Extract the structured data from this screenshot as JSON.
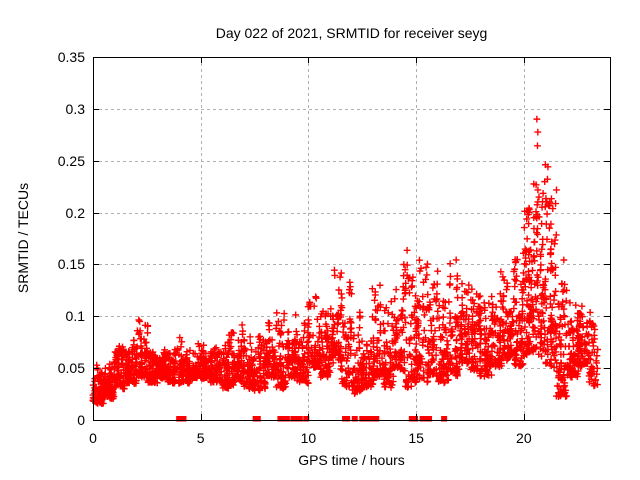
{
  "chart_data": {
    "type": "scatter",
    "title": "Day 022 of 2021, SRMTID for receiver seyg",
    "xlabel": "GPS time / hours",
    "ylabel": "SRMTID / TECUs",
    "xlim": [
      0,
      24
    ],
    "ylim": [
      0,
      0.35
    ],
    "xticks": [
      0,
      5,
      10,
      15,
      20
    ],
    "xtick_labels": [
      "0",
      "5",
      "10",
      "15",
      "20"
    ],
    "yticks": [
      0,
      0.05,
      0.1,
      0.15,
      0.2,
      0.25,
      0.3,
      0.35
    ],
    "ytick_labels": [
      "0",
      "0.05",
      "0.1",
      "0.15",
      "0.2",
      "0.25",
      "0.3",
      "0.35"
    ],
    "grid": true,
    "legend": "none",
    "marker": "plus",
    "marker_color": "#ff0000",
    "grid_color": "#b0b0b0",
    "axis_color": "#000000",
    "bands": [
      [
        0.0,
        0.5,
        0.015,
        0.055,
        85
      ],
      [
        0.5,
        1.0,
        0.02,
        0.075,
        90
      ],
      [
        1.0,
        1.5,
        0.03,
        0.1,
        85
      ],
      [
        1.5,
        2.0,
        0.035,
        0.08,
        80
      ],
      [
        2.0,
        2.5,
        0.04,
        0.125,
        85
      ],
      [
        2.5,
        3.0,
        0.035,
        0.095,
        80
      ],
      [
        3.0,
        3.5,
        0.04,
        0.08,
        75
      ],
      [
        3.5,
        4.0,
        0.035,
        0.075,
        75
      ],
      [
        4.0,
        4.5,
        0.035,
        0.08,
        70
      ],
      [
        4.5,
        5.0,
        0.04,
        0.08,
        70
      ],
      [
        5.0,
        5.5,
        0.04,
        0.085,
        70
      ],
      [
        5.5,
        6.0,
        0.035,
        0.08,
        70
      ],
      [
        6.0,
        6.5,
        0.03,
        0.09,
        70
      ],
      [
        6.5,
        7.0,
        0.035,
        0.1,
        70
      ],
      [
        7.0,
        7.5,
        0.03,
        0.085,
        65
      ],
      [
        7.5,
        8.0,
        0.025,
        0.105,
        65
      ],
      [
        8.0,
        8.5,
        0.04,
        0.1,
        70
      ],
      [
        8.5,
        9.0,
        0.03,
        0.105,
        65
      ],
      [
        9.0,
        9.5,
        0.04,
        0.11,
        65
      ],
      [
        9.5,
        10.0,
        0.035,
        0.125,
        65
      ],
      [
        10.0,
        10.5,
        0.05,
        0.14,
        70
      ],
      [
        10.5,
        11.0,
        0.04,
        0.125,
        70
      ],
      [
        11.0,
        11.5,
        0.055,
        0.16,
        70
      ],
      [
        11.5,
        12.0,
        0.03,
        0.15,
        65
      ],
      [
        12.0,
        12.5,
        0.025,
        0.125,
        60
      ],
      [
        12.5,
        13.0,
        0.03,
        0.105,
        60
      ],
      [
        13.0,
        13.5,
        0.04,
        0.14,
        65
      ],
      [
        13.5,
        14.0,
        0.03,
        0.125,
        60
      ],
      [
        14.0,
        14.5,
        0.045,
        0.155,
        65
      ],
      [
        14.5,
        15.0,
        0.03,
        0.18,
        65
      ],
      [
        15.0,
        15.5,
        0.035,
        0.155,
        65
      ],
      [
        15.5,
        16.0,
        0.04,
        0.145,
        65
      ],
      [
        16.0,
        16.5,
        0.035,
        0.14,
        60
      ],
      [
        16.5,
        17.0,
        0.04,
        0.17,
        65
      ],
      [
        17.0,
        17.5,
        0.05,
        0.155,
        65
      ],
      [
        17.5,
        18.0,
        0.045,
        0.14,
        65
      ],
      [
        18.0,
        18.5,
        0.04,
        0.125,
        65
      ],
      [
        18.5,
        19.0,
        0.05,
        0.16,
        70
      ],
      [
        19.0,
        19.5,
        0.055,
        0.165,
        75
      ],
      [
        19.5,
        20.0,
        0.05,
        0.19,
        80
      ],
      [
        20.0,
        20.5,
        0.06,
        0.225,
        90
      ],
      [
        20.5,
        21.0,
        0.06,
        0.34,
        95
      ],
      [
        21.0,
        21.5,
        0.05,
        0.26,
        90
      ],
      [
        21.5,
        22.0,
        0.02,
        0.16,
        80
      ],
      [
        22.0,
        22.5,
        0.04,
        0.14,
        75
      ],
      [
        22.5,
        23.0,
        0.05,
        0.135,
        70
      ],
      [
        23.0,
        23.4,
        0.03,
        0.115,
        40
      ]
    ],
    "zero_marks": [
      4.0,
      4.1,
      4.2,
      7.55,
      7.65,
      8.7,
      8.8,
      9.0,
      9.3,
      9.45,
      9.6,
      9.9,
      11.7,
      11.8,
      12.15,
      12.5,
      12.6,
      12.85,
      12.95,
      13.05,
      13.15,
      14.8,
      14.95,
      15.3,
      15.45,
      15.6,
      16.3
    ]
  }
}
